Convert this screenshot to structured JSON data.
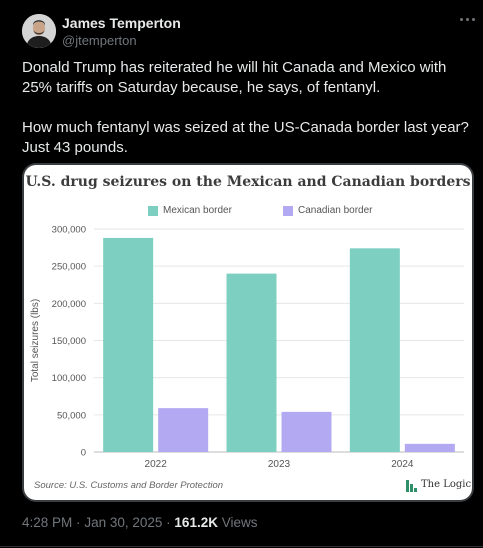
{
  "author": {
    "name": "James Temperton",
    "handle": "@jtemperton"
  },
  "tweet": {
    "paragraph1": "Donald Trump has reiterated he will hit Canada and Mexico with 25% tariffs on Saturday because, he says, of fentanyl.",
    "paragraph2": "How much fentanyl was seized at the US-Canada border last year? Just 43 pounds."
  },
  "meta": {
    "time": "4:28 PM",
    "separator": "·",
    "date": "Jan 30, 2025",
    "views_count": "161.2K",
    "views_label": "Views"
  },
  "icons": {
    "more": "more-icon"
  },
  "chart_data": {
    "type": "bar",
    "title": "U.S. drug seizures on the Mexican and Canadian borders",
    "categories": [
      "2022",
      "2023",
      "2024"
    ],
    "series": [
      {
        "name": "Mexican border",
        "values": [
          288000,
          240000,
          274000
        ],
        "color": "#7dcfc2"
      },
      {
        "name": "Canadian border",
        "values": [
          59000,
          54000,
          11000
        ],
        "color": "#b3a8f2"
      }
    ],
    "ylabel": "Total seizures (lbs)",
    "xlabel": "",
    "ylim": [
      0,
      300000
    ],
    "yticks": [
      0,
      50000,
      100000,
      150000,
      200000,
      250000,
      300000
    ],
    "ytick_labels": [
      "0",
      "50,000",
      "100,000",
      "150,000",
      "200,000",
      "250,000",
      "300,000"
    ],
    "grid": true,
    "legend_position": "top",
    "source": "Source: U.S. Customs and Border Protection",
    "publisher": "The Logic"
  }
}
